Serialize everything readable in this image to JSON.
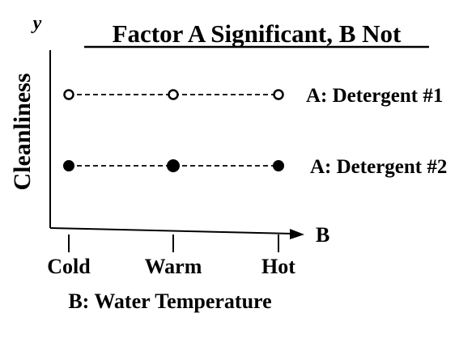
{
  "chart_data": {
    "type": "line",
    "title": "Factor A Significant, B Not",
    "ylabel": "Cleanliness",
    "y_axis_symbol": "y",
    "x_axis_symbol": "B",
    "xlabel": "B: Water Temperature",
    "categories": [
      "Cold",
      "Warm",
      "Hot"
    ],
    "ylim": [
      0,
      1
    ],
    "grid": false,
    "series": [
      {
        "name": "A: Detergent #1",
        "values": [
          0.75,
          0.75,
          0.75
        ],
        "marker": "open-circle",
        "line_style": "dashed"
      },
      {
        "name": "A: Detergent #2",
        "values": [
          0.35,
          0.35,
          0.35
        ],
        "marker": "filled-circle",
        "line_style": "dashed"
      }
    ]
  }
}
